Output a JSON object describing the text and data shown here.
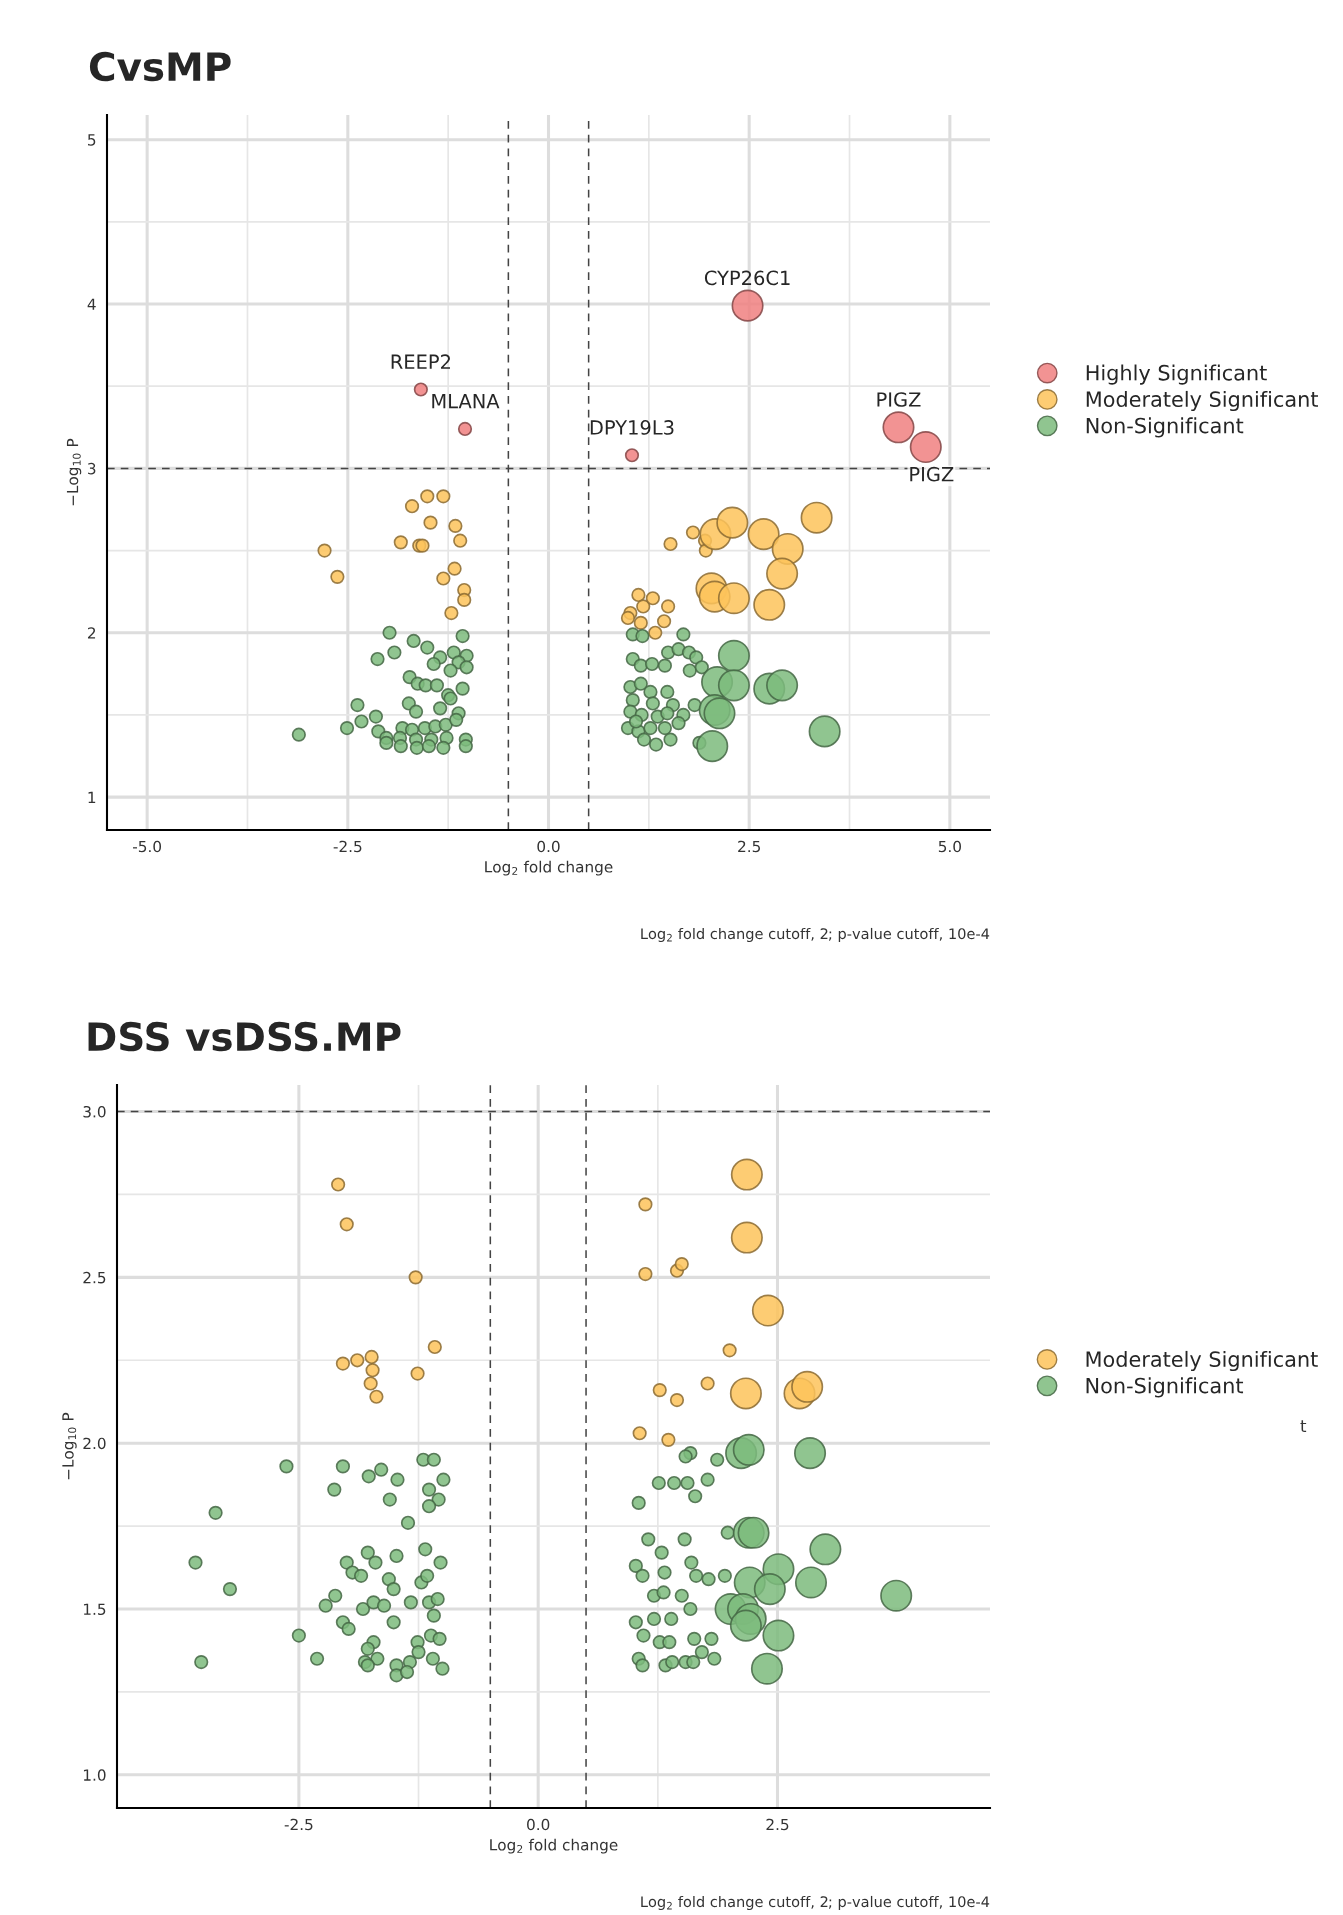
{
  "chart_data": [
    {
      "type": "bubble",
      "title": "CvsMP",
      "xlabel": "Log$_{2}$ fold change",
      "ylabel": "−Log$_{10}$ P",
      "xlim": [
        -5.5,
        5.5
      ],
      "ylim": [
        0.8,
        5.15
      ],
      "xticks": [
        {
          "value": -5,
          "label": "-5.0"
        },
        {
          "value": -2.5,
          "label": "-2.5"
        },
        {
          "value": 0,
          "label": "0.0"
        },
        {
          "value": 2.5,
          "label": "2.5"
        },
        {
          "value": 5,
          "label": "5.0"
        }
      ],
      "yticks": [
        1,
        2,
        3,
        4,
        5
      ],
      "grid": true,
      "legend": "right",
      "ref_lines": [
        {
          "axis": "x",
          "value": -0.5,
          "line_style": "dashed"
        },
        {
          "axis": "x",
          "value": 0.5,
          "line_style": "dashed"
        },
        {
          "axis": "y",
          "value": 3,
          "line_style": "dashed"
        }
      ],
      "annotations": [
        {
          "text": "CYP26C1",
          "x": 2.48,
          "y": 3.99
        },
        {
          "text": "REEP2",
          "x": -1.59,
          "y": 3.48
        },
        {
          "text": "MLANA",
          "x": -1.04,
          "y": 3.24
        },
        {
          "text": "DPY19L3",
          "x": 1.04,
          "y": 3.08
        },
        {
          "text": "PIGZ",
          "x": 4.36,
          "y": 3.25
        },
        {
          "text": "PIGZ",
          "x": 4.7,
          "y": 3.13
        },
        "Log$_{2}$ fold change cutoff, 2; p-value cutoff, 10e-4"
      ],
      "series": [
        {
          "name": "Highly Significant",
          "color": "#f08080",
          "x": [
            2.48,
            -1.59,
            -1.04,
            1.04,
            4.36,
            4.7
          ],
          "values": [
            3.99,
            3.48,
            3.24,
            3.08,
            3.25,
            3.13
          ],
          "sizes": [
            1,
            0.17,
            0.17,
            0.17,
            1,
            1
          ]
        },
        {
          "name": "Moderately Significant",
          "color": "#fdc35b",
          "x": [
            -1.51,
            -1.31,
            -1.7,
            -1.47,
            -1.16,
            -1.84,
            -1.61,
            -1.57,
            -1.1,
            -2.79,
            -2.63,
            -1.17,
            -1.31,
            -1.05,
            -1.05,
            -1.21,
            1.52,
            1.8,
            1.95,
            1.96,
            1.12,
            1.18,
            1.3,
            1.49,
            1.02,
            1.15,
            1.44,
            1.33,
            0.99,
            2.08,
            2.29,
            2.68,
            2.98,
            3.34,
            2.91,
            2.03,
            2.07,
            2.31,
            2.75
          ],
          "values": [
            2.83,
            2.83,
            2.77,
            2.67,
            2.65,
            2.55,
            2.53,
            2.53,
            2.56,
            2.5,
            2.34,
            2.39,
            2.33,
            2.26,
            2.2,
            2.12,
            2.54,
            2.61,
            2.56,
            2.5,
            2.23,
            2.16,
            2.21,
            2.16,
            2.12,
            2.06,
            2.07,
            2.0,
            2.09,
            2.6,
            2.67,
            2.6,
            2.51,
            2.7,
            2.36,
            2.27,
            2.22,
            2.21,
            2.17
          ],
          "sizes": [
            0.17,
            0.17,
            0.17,
            0.17,
            0.17,
            0.17,
            0.17,
            0.17,
            0.17,
            0.17,
            0.17,
            0.17,
            0.17,
            0.17,
            0.17,
            0.17,
            0.17,
            0.17,
            0.17,
            0.17,
            0.17,
            0.17,
            0.17,
            0.17,
            0.17,
            0.17,
            0.17,
            0.17,
            0.17,
            1,
            1,
            1,
            1,
            1,
            1,
            1,
            1,
            1,
            1
          ]
        },
        {
          "name": "Non-Significant",
          "color": "#7dbb7d",
          "x": [
            -1.98,
            -1.68,
            -1.07,
            -1.51,
            -2.13,
            -1.92,
            -1.35,
            -1.18,
            -1.02,
            -1.43,
            -1.12,
            -1.22,
            -1.02,
            -1.73,
            -1.63,
            -1.53,
            -1.39,
            -1.07,
            -1.25,
            -1.22,
            -2.38,
            -1.74,
            -1.65,
            -1.12,
            -1.35,
            -2.15,
            -2.33,
            -2.51,
            -1.82,
            -1.7,
            -1.54,
            -1.41,
            -1.28,
            -1.15,
            -3.11,
            -2.12,
            -2.02,
            -1.85,
            -1.65,
            -1.46,
            -1.27,
            -1.03,
            -2.02,
            -1.84,
            -1.64,
            -1.49,
            -1.31,
            -1.03,
            1.05,
            1.17,
            1.68,
            1.49,
            1.62,
            1.75,
            1.84,
            1.05,
            1.15,
            1.29,
            1.45,
            1.76,
            1.91,
            1.02,
            1.15,
            1.27,
            1.48,
            1.05,
            1.3,
            1.55,
            1.82,
            1.02,
            1.16,
            1.36,
            1.48,
            1.68,
            0.99,
            1.12,
            1.27,
            1.45,
            1.62,
            1.19,
            1.34,
            1.52,
            1.88,
            1.09,
            2.31,
            2.1,
            2.31,
            2.75,
            2.91,
            2.07,
            2.13,
            2.04,
            3.44
          ],
          "values": [
            2.0,
            1.95,
            1.98,
            1.91,
            1.84,
            1.88,
            1.85,
            1.88,
            1.86,
            1.81,
            1.82,
            1.77,
            1.79,
            1.73,
            1.69,
            1.68,
            1.68,
            1.66,
            1.62,
            1.6,
            1.56,
            1.57,
            1.52,
            1.51,
            1.54,
            1.49,
            1.46,
            1.42,
            1.42,
            1.41,
            1.42,
            1.43,
            1.44,
            1.47,
            1.38,
            1.4,
            1.36,
            1.36,
            1.35,
            1.35,
            1.36,
            1.35,
            1.33,
            1.31,
            1.3,
            1.31,
            1.3,
            1.31,
            1.99,
            1.98,
            1.99,
            1.88,
            1.9,
            1.88,
            1.85,
            1.84,
            1.8,
            1.81,
            1.8,
            1.77,
            1.79,
            1.67,
            1.69,
            1.64,
            1.64,
            1.59,
            1.57,
            1.56,
            1.56,
            1.52,
            1.5,
            1.49,
            1.51,
            1.5,
            1.42,
            1.4,
            1.42,
            1.42,
            1.45,
            1.35,
            1.32,
            1.35,
            1.33,
            1.46,
            1.86,
            1.7,
            1.68,
            1.66,
            1.68,
            1.53,
            1.51,
            1.31,
            1.4
          ],
          "sizes": [
            0.17,
            0.17,
            0.17,
            0.17,
            0.17,
            0.17,
            0.17,
            0.17,
            0.17,
            0.17,
            0.17,
            0.17,
            0.17,
            0.17,
            0.17,
            0.17,
            0.17,
            0.17,
            0.17,
            0.17,
            0.17,
            0.17,
            0.17,
            0.17,
            0.17,
            0.17,
            0.17,
            0.17,
            0.17,
            0.17,
            0.17,
            0.17,
            0.17,
            0.17,
            0.17,
            0.17,
            0.17,
            0.17,
            0.17,
            0.17,
            0.17,
            0.17,
            0.17,
            0.17,
            0.17,
            0.17,
            0.17,
            0.17,
            0.17,
            0.17,
            0.17,
            0.17,
            0.17,
            0.17,
            0.17,
            0.17,
            0.17,
            0.17,
            0.17,
            0.17,
            0.17,
            0.17,
            0.17,
            0.17,
            0.17,
            0.17,
            0.17,
            0.17,
            0.17,
            0.17,
            0.17,
            0.17,
            0.17,
            0.17,
            0.17,
            0.17,
            0.17,
            0.17,
            0.17,
            0.17,
            0.17,
            0.17,
            0.17,
            0.17,
            1,
            1,
            1,
            1,
            1,
            1,
            1,
            1,
            1
          ]
        }
      ]
    },
    {
      "type": "bubble",
      "title": "DSS vsDSS.MP",
      "xlabel": "Log$_{2}$ fold change",
      "ylabel": "−Log$_{10}$ P",
      "xlim": [
        -4.4,
        4.72
      ],
      "ylim": [
        0.9,
        3.08
      ],
      "xticks": [
        {
          "value": -2.5,
          "label": "-2.5"
        },
        {
          "value": 0,
          "label": "0.0"
        },
        {
          "value": 2.5,
          "label": "2.5"
        }
      ],
      "yticks": [
        {
          "value": 1,
          "label": "1.0"
        },
        {
          "value": 1.5,
          "label": "1.5"
        },
        {
          "value": 2,
          "label": "2.0"
        },
        {
          "value": 2.5,
          "label": "2.5"
        },
        {
          "value": 3,
          "label": "3.0"
        }
      ],
      "grid": true,
      "legend": "right",
      "ref_lines": [
        {
          "axis": "x",
          "value": -0.5,
          "line_style": "dashed"
        },
        {
          "axis": "x",
          "value": 0.5,
          "line_style": "dashed"
        },
        {
          "axis": "y",
          "value": 3,
          "line_style": "dashed"
        }
      ],
      "annotations": [
        "Log$_{2}$ fold change cutoff, 2; p-value cutoff, 10e-4",
        "t"
      ],
      "series": [
        {
          "name": "Moderately Significant",
          "color": "#fdc35b",
          "x": [
            -2.09,
            -2.0,
            -1.28,
            -1.08,
            -2.04,
            -1.89,
            -1.74,
            -1.73,
            -1.75,
            -1.69,
            -1.26,
            1.12,
            1.12,
            1.45,
            1.5,
            2.0,
            1.27,
            1.45,
            1.77,
            1.06,
            1.36,
            2.18,
            2.18,
            2.4,
            2.17,
            2.73,
            2.81
          ],
          "values": [
            2.78,
            2.66,
            2.5,
            2.29,
            2.24,
            2.25,
            2.26,
            2.22,
            2.18,
            2.14,
            2.21,
            2.72,
            2.51,
            2.52,
            2.54,
            2.28,
            2.16,
            2.13,
            2.18,
            2.03,
            2.01,
            2.81,
            2.62,
            2.4,
            2.15,
            2.15,
            2.17
          ],
          "sizes": [
            0.17,
            0.17,
            0.17,
            0.17,
            0.17,
            0.17,
            0.17,
            0.17,
            0.17,
            0.17,
            0.17,
            0.17,
            0.17,
            0.17,
            0.17,
            0.17,
            0.17,
            0.17,
            0.17,
            0.17,
            0.17,
            1,
            1,
            1,
            1,
            1,
            1
          ]
        },
        {
          "name": "Non-Significant",
          "color": "#7dbb7d",
          "x": [
            -2.63,
            -3.37,
            -3.58,
            -3.22,
            -3.52,
            -2.5,
            -2.31,
            -2.13,
            -2.04,
            -1.77,
            -1.64,
            -1.47,
            -1.55,
            -1.36,
            -1.2,
            -1.09,
            -0.99,
            -1.14,
            -1.04,
            -1.14,
            -2.0,
            -1.94,
            -1.85,
            -1.78,
            -1.7,
            -1.56,
            -1.48,
            -1.51,
            -1.22,
            -1.18,
            -1.02,
            -1.16,
            -2.12,
            -2.22,
            -1.83,
            -1.72,
            -1.61,
            -1.33,
            -1.14,
            -1.05,
            -1.09,
            -2.04,
            -1.98,
            -1.51,
            -1.12,
            -1.03,
            -1.72,
            -1.78,
            -1.68,
            -1.81,
            -1.78,
            -1.26,
            -1.25,
            -1.34,
            -1.48,
            -1.48,
            -1.37,
            -1.1,
            -1.0,
            1.59,
            1.54,
            1.87,
            1.26,
            1.42,
            1.56,
            1.77,
            1.64,
            1.05,
            1.98,
            1.15,
            1.29,
            1.53,
            1.02,
            1.09,
            1.32,
            1.6,
            1.65,
            1.78,
            1.95,
            1.21,
            1.31,
            1.5,
            1.59,
            1.02,
            1.21,
            1.39,
            1.1,
            1.27,
            1.37,
            1.63,
            1.81,
            1.71,
            1.05,
            1.09,
            1.33,
            1.4,
            1.54,
            1.62,
            1.84,
            2.12,
            2.2,
            2.84,
            2.2,
            2.25,
            3.0,
            2.51,
            2.21,
            2.42,
            2.85,
            3.74,
            2.01,
            2.14,
            2.22,
            2.17,
            2.51,
            2.39
          ],
          "values": [
            1.93,
            1.79,
            1.64,
            1.56,
            1.34,
            1.42,
            1.35,
            1.86,
            1.93,
            1.9,
            1.92,
            1.89,
            1.83,
            1.76,
            1.95,
            1.95,
            1.89,
            1.86,
            1.83,
            1.81,
            1.64,
            1.61,
            1.6,
            1.67,
            1.64,
            1.59,
            1.66,
            1.56,
            1.58,
            1.68,
            1.64,
            1.6,
            1.54,
            1.51,
            1.5,
            1.52,
            1.51,
            1.52,
            1.52,
            1.53,
            1.48,
            1.46,
            1.44,
            1.46,
            1.42,
            1.41,
            1.4,
            1.38,
            1.35,
            1.34,
            1.33,
            1.4,
            1.37,
            1.34,
            1.33,
            1.3,
            1.31,
            1.35,
            1.32,
            1.97,
            1.96,
            1.95,
            1.88,
            1.88,
            1.88,
            1.89,
            1.84,
            1.82,
            1.73,
            1.71,
            1.67,
            1.71,
            1.63,
            1.6,
            1.61,
            1.64,
            1.6,
            1.59,
            1.6,
            1.54,
            1.55,
            1.54,
            1.5,
            1.46,
            1.47,
            1.47,
            1.42,
            1.4,
            1.4,
            1.41,
            1.41,
            1.37,
            1.35,
            1.33,
            1.33,
            1.34,
            1.34,
            1.34,
            1.35,
            1.97,
            1.98,
            1.97,
            1.73,
            1.73,
            1.68,
            1.62,
            1.58,
            1.56,
            1.58,
            1.54,
            1.5,
            1.5,
            1.47,
            1.45,
            1.42,
            1.32
          ],
          "sizes": [
            0.17,
            0.17,
            0.17,
            0.17,
            0.17,
            0.17,
            0.17,
            0.17,
            0.17,
            0.17,
            0.17,
            0.17,
            0.17,
            0.17,
            0.17,
            0.17,
            0.17,
            0.17,
            0.17,
            0.17,
            0.17,
            0.17,
            0.17,
            0.17,
            0.17,
            0.17,
            0.17,
            0.17,
            0.17,
            0.17,
            0.17,
            0.17,
            0.17,
            0.17,
            0.17,
            0.17,
            0.17,
            0.17,
            0.17,
            0.17,
            0.17,
            0.17,
            0.17,
            0.17,
            0.17,
            0.17,
            0.17,
            0.17,
            0.17,
            0.17,
            0.17,
            0.17,
            0.17,
            0.17,
            0.17,
            0.17,
            0.17,
            0.17,
            0.17,
            0.17,
            0.17,
            0.17,
            0.17,
            0.17,
            0.17,
            0.17,
            0.17,
            0.17,
            0.17,
            0.17,
            0.17,
            0.17,
            0.17,
            0.17,
            0.17,
            0.17,
            0.17,
            0.17,
            0.17,
            0.17,
            0.17,
            0.17,
            0.17,
            0.17,
            0.17,
            0.17,
            0.17,
            0.17,
            0.17,
            0.17,
            0.17,
            0.17,
            0.17,
            0.17,
            0.17,
            0.17,
            0.17,
            0.17,
            0.17,
            1,
            1,
            1,
            1,
            1,
            1,
            1,
            1,
            1,
            1,
            1,
            1,
            1,
            1,
            1,
            1,
            1
          ]
        }
      ]
    }
  ]
}
